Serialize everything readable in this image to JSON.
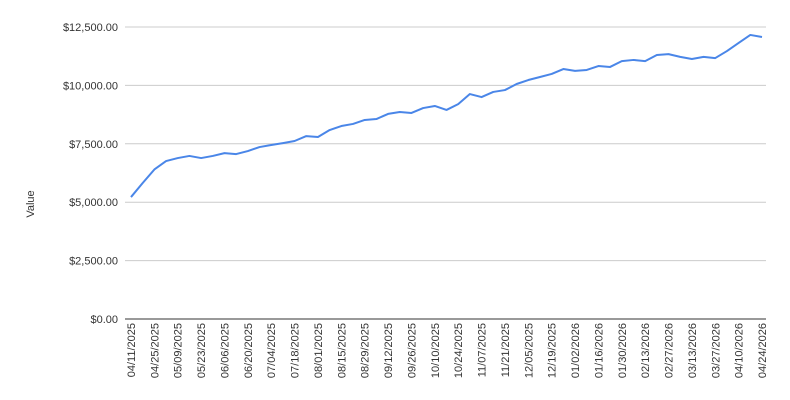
{
  "chart_data": {
    "type": "line",
    "y_label": "Value",
    "categories": [
      "04/11/2025",
      null,
      "04/25/2025",
      null,
      "05/09/2025",
      null,
      "05/23/2025",
      null,
      "06/06/2025",
      null,
      "06/20/2025",
      null,
      "07/04/2025",
      null,
      "07/18/2025",
      null,
      "08/01/2025",
      null,
      "08/15/2025",
      null,
      "08/29/2025",
      null,
      "09/12/2025",
      null,
      "09/26/2025",
      null,
      "10/10/2025",
      null,
      "10/24/2025",
      null,
      "11/07/2025",
      null,
      "11/21/2025",
      null,
      "12/05/2025",
      null,
      "12/19/2025",
      null,
      "01/02/2026",
      null,
      "01/16/2026",
      null,
      "01/30/2026",
      null,
      "02/13/2026",
      null,
      "02/27/2026",
      null,
      "03/13/2026",
      null,
      "03/27/2026",
      null,
      "04/10/2026",
      null,
      "04/24/2026"
    ],
    "series": [
      {
        "color": "#4a86e8",
        "values": [
          5220,
          5820,
          6400,
          6760,
          6890,
          6980,
          6890,
          6980,
          7100,
          7060,
          7190,
          7360,
          7450,
          7530,
          7620,
          7830,
          7790,
          8090,
          8260,
          8350,
          8520,
          8560,
          8780,
          8860,
          8820,
          9030,
          9120,
          8950,
          9200,
          9630,
          9500,
          9720,
          9800,
          10060,
          10230,
          10360,
          10490,
          10700,
          10620,
          10660,
          10830,
          10790,
          11040,
          11090,
          11040,
          11300,
          11340,
          11220,
          11130,
          11220,
          11170,
          11470,
          11820,
          12160,
          12070
        ]
      }
    ],
    "ylim": [
      0,
      12500
    ],
    "yticks": [
      {
        "value": 0,
        "label": "$0.00"
      },
      {
        "value": 2500,
        "label": "$2,500.00"
      },
      {
        "value": 5000,
        "label": "$5,000.00"
      },
      {
        "value": 7500,
        "label": "$7,500.00"
      },
      {
        "value": 10000,
        "label": "$10,000.00"
      },
      {
        "value": 12500,
        "label": "$12,500.00"
      }
    ],
    "grid": true
  }
}
